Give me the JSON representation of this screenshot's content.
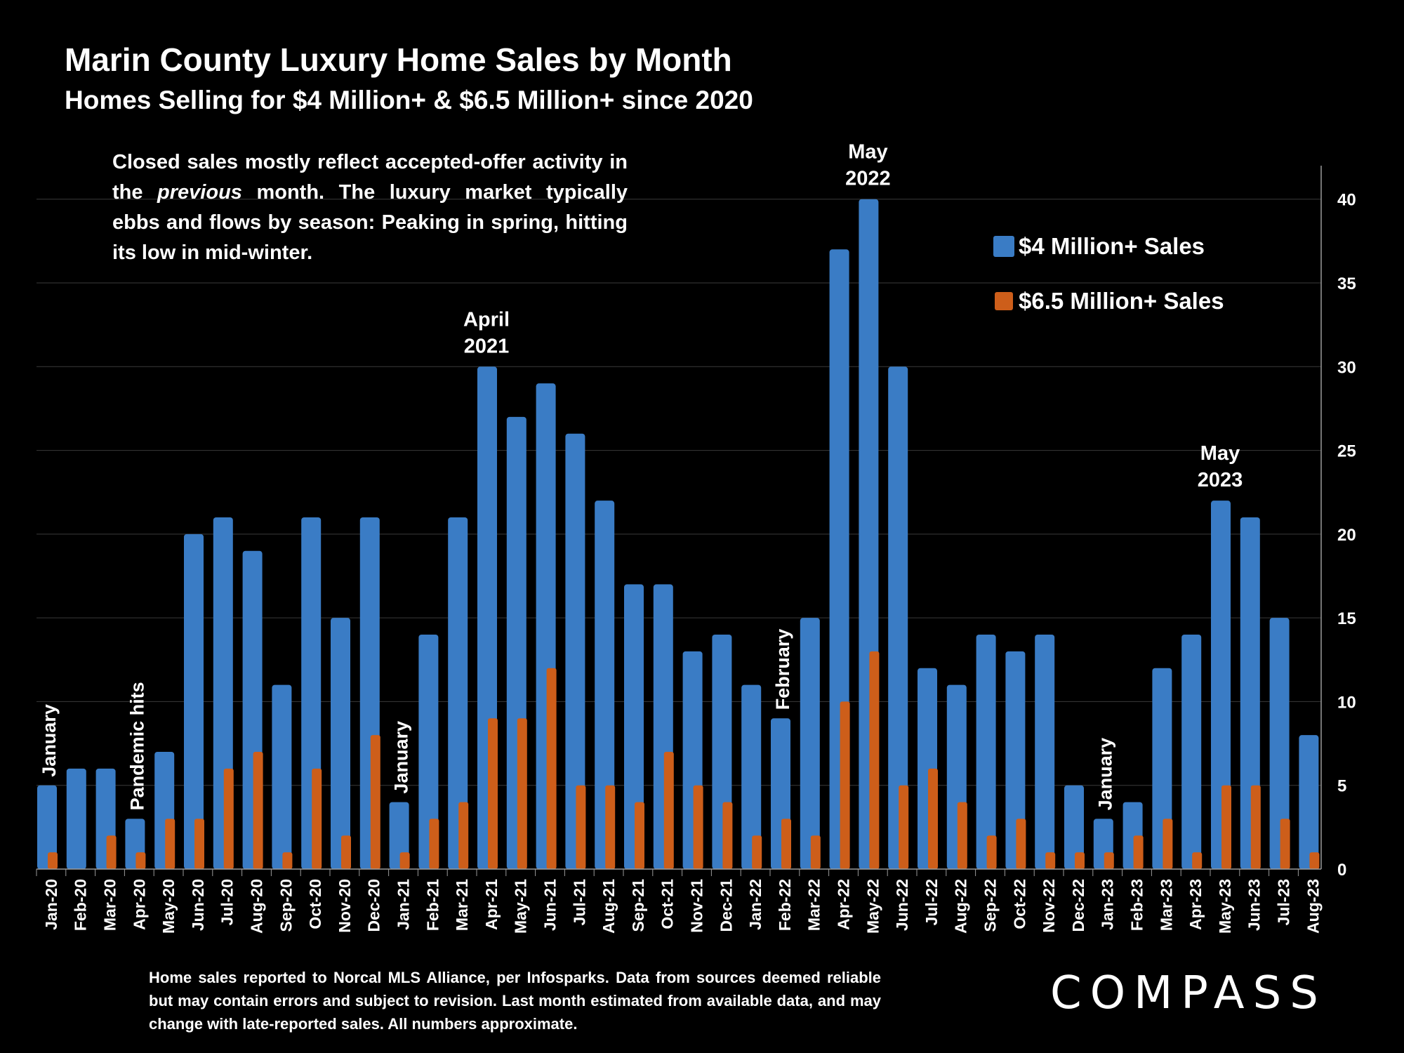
{
  "title": "Marin County Luxury Home Sales by Month",
  "subtitle": "Homes Selling for $4 Million+ & $6.5 Million+ since 2020",
  "note": "Closed sales mostly reflect accepted-offer activity in the previous month. The luxury market typically ebbs and flows by season: Peaking in spring, hitting its low in mid-winter.",
  "note_parts": {
    "before": "Closed sales mostly reflect accepted-offer activity in the ",
    "emphasis": "previous",
    "after": " month. The luxury market typically ebbs and flows by season: Peaking in spring, hitting its low in mid-winter."
  },
  "footnote": "Home sales reported to Norcal MLS Alliance, per Infosparks. Data from sources deemed reliable but may contain errors and subject to revision.  Last month estimated from available data, and may change with late-reported sales. All numbers approximate.",
  "logo": {
    "text": "COMPASS",
    "icon": "compass-o-icon"
  },
  "colors": {
    "blue": "#3A7CC5",
    "orange": "#CD5E1A",
    "grid": "#3A3A3A",
    "axis": "#9A9A9A"
  },
  "chart_data": {
    "type": "bar",
    "title": "Marin County Luxury Home Sales by Month",
    "subtitle": "Homes Selling for $4 Million+ & $6.5 Million+ since 2020",
    "categories": [
      "Jan-20",
      "Feb-20",
      "Mar-20",
      "Apr-20",
      "May-20",
      "Jun-20",
      "Jul-20",
      "Aug-20",
      "Sep-20",
      "Oct-20",
      "Nov-20",
      "Dec-20",
      "Jan-21",
      "Feb-21",
      "Mar-21",
      "Apr-21",
      "May-21",
      "Jun-21",
      "Jul-21",
      "Aug-21",
      "Sep-21",
      "Oct-21",
      "Nov-21",
      "Dec-21",
      "Jan-22",
      "Feb-22",
      "Mar-22",
      "Apr-22",
      "May-22",
      "Jun-22",
      "Jul-22",
      "Aug-22",
      "Sep-22",
      "Oct-22",
      "Nov-22",
      "Dec-22",
      "Jan-23",
      "Feb-23",
      "Mar-23",
      "Apr-23",
      "May-23",
      "Jun-23",
      "Jul-23",
      "Aug-23"
    ],
    "series": [
      {
        "name": "$4 Million+ Sales",
        "color": "#3A7CC5",
        "values": [
          5,
          6,
          6,
          3,
          7,
          20,
          21,
          19,
          11,
          21,
          15,
          21,
          4,
          14,
          21,
          30,
          27,
          29,
          26,
          22,
          17,
          17,
          13,
          14,
          11,
          9,
          15,
          37,
          40,
          30,
          12,
          11,
          14,
          13,
          14,
          5,
          3,
          4,
          12,
          14,
          22,
          21,
          15,
          8
        ]
      },
      {
        "name": "$6.5 Million+ Sales",
        "color": "#CD5E1A",
        "values": [
          1,
          0,
          2,
          1,
          3,
          3,
          6,
          7,
          1,
          6,
          2,
          8,
          1,
          3,
          4,
          9,
          9,
          12,
          5,
          5,
          4,
          7,
          5,
          4,
          2,
          3,
          2,
          10,
          13,
          5,
          6,
          4,
          2,
          3,
          1,
          1,
          1,
          2,
          3,
          1,
          5,
          5,
          3,
          1
        ]
      }
    ],
    "ylim": [
      0,
      42
    ],
    "yticks": [
      0,
      5,
      10,
      15,
      20,
      25,
      30,
      35,
      40
    ],
    "y_axis_side": "right",
    "grid": true,
    "legend": "top-right",
    "annotations": [
      {
        "text": "January",
        "index": 0,
        "rotated": true
      },
      {
        "text": "Pandemic hits",
        "index": 3,
        "rotated": true
      },
      {
        "text": "January",
        "index": 12,
        "rotated": true
      },
      {
        "text": "April\n2021",
        "index": 15,
        "rotated": false
      },
      {
        "text": "February",
        "index": 25,
        "rotated": true
      },
      {
        "text": "May\n2022",
        "index": 28,
        "rotated": false
      },
      {
        "text": "January",
        "index": 36,
        "rotated": true
      },
      {
        "text": "May\n2023",
        "index": 40,
        "rotated": false
      }
    ]
  }
}
